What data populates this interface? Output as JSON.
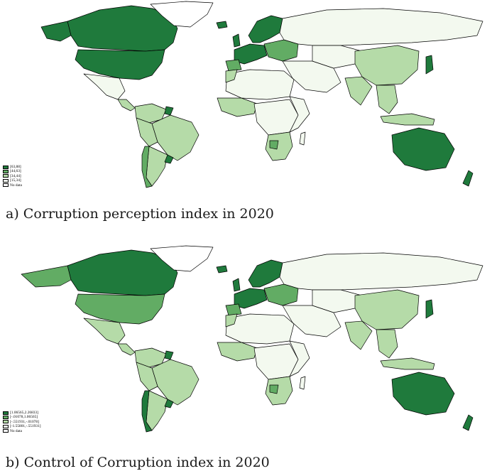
{
  "colors": {
    "level1": "#1f7a3c",
    "level2": "#62ac64",
    "level3": "#b5dba8",
    "level4": "#f3f9ef",
    "nodata": "#ffffff"
  },
  "panel_a": {
    "caption": "a) Corruption perception index in 2020",
    "legend": [
      {
        "label": "[63,88]",
        "level": "level1"
      },
      {
        "label": "[44,63]",
        "level": "level2"
      },
      {
        "label": "[34,44]",
        "level": "level3"
      },
      {
        "label": "[15,34]",
        "level": "level4"
      },
      {
        "label": "No data",
        "level": "nodata"
      }
    ]
  },
  "panel_b": {
    "caption": "b) Control of Corruption index in 2020",
    "legend": [
      {
        "label": "[1.06565,2.26833]",
        "level": "level1"
      },
      {
        "label": "[-.01078,1.06565]",
        "level": "level2"
      },
      {
        "label": "[-.551931,-.01078]",
        "level": "level3"
      },
      {
        "label": "[-1.55801,-.551931]",
        "level": "level4"
      },
      {
        "label": "No data",
        "level": "nodata"
      }
    ]
  }
}
